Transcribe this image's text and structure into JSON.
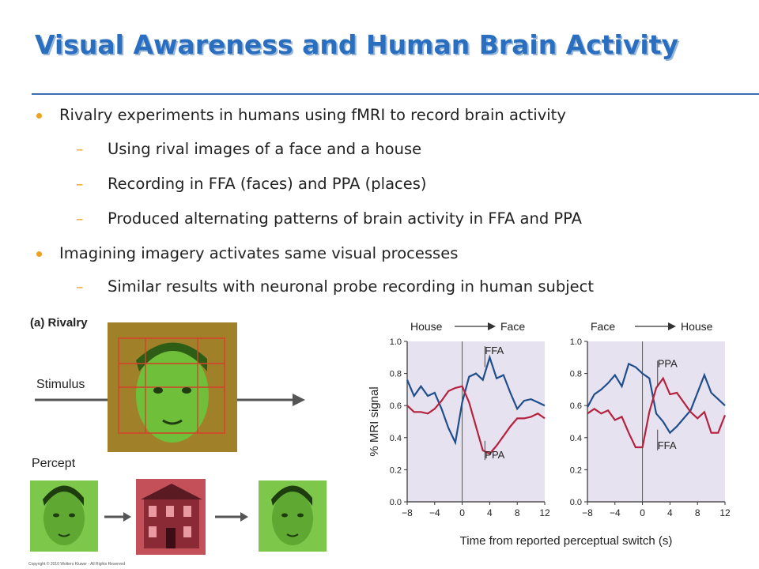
{
  "slide": {
    "title": "Visual Awareness and Human Brain Activity",
    "bullets": [
      {
        "level": 1,
        "text": "Rivalry experiments in humans using fMRI to record brain activity"
      },
      {
        "level": 2,
        "text": "Using rival images of a face and a house"
      },
      {
        "level": 2,
        "text": "Recording in FFA (faces) and PPA (places)"
      },
      {
        "level": 2,
        "text": "Produced alternating patterns of brain activity in FFA and PPA"
      },
      {
        "level": 1,
        "text": "Imagining imagery activates same visual processes"
      },
      {
        "level": 2,
        "text": "Similar results with neuronal probe recording in human subject"
      }
    ]
  },
  "figure": {
    "panel_label": "(a) Rivalry",
    "stimulus_label": "Stimulus",
    "percept_label": "Percept",
    "copyright": "Copyright © 2010 Wolters Kluwer - All Rights Reserved"
  },
  "chart_data": [
    {
      "type": "line",
      "title": "House → Face",
      "ylabel": "% MRI signal",
      "xlabel": "Time from reported perceptual switch (s)",
      "xlim": [
        -8,
        12
      ],
      "ylim": [
        0,
        1.0
      ],
      "x_ticks": [
        "-8",
        "-4",
        "0",
        "4",
        "8",
        "12"
      ],
      "y_ticks": [
        "0.0",
        "0.2",
        "0.4",
        "0.6",
        "0.8",
        "1.0"
      ],
      "title_left": "House",
      "title_right": "Face",
      "series": [
        {
          "name": "FFA",
          "color": "#1f4e8c",
          "x": [
            -8,
            -7,
            -6,
            -5,
            -4,
            -3,
            -2,
            -1,
            0,
            1,
            2,
            3,
            4,
            5,
            6,
            7,
            8,
            9,
            10,
            11,
            12
          ],
          "values": [
            0.76,
            0.66,
            0.72,
            0.66,
            0.68,
            0.58,
            0.46,
            0.37,
            0.62,
            0.78,
            0.8,
            0.76,
            0.9,
            0.77,
            0.79,
            0.68,
            0.58,
            0.63,
            0.64,
            0.62,
            0.6
          ]
        },
        {
          "name": "PPA",
          "color": "#b5223f",
          "x": [
            -8,
            -7,
            -6,
            -5,
            -4,
            -3,
            -2,
            -1,
            0,
            1,
            2,
            3,
            4,
            5,
            6,
            7,
            8,
            9,
            10,
            11,
            12
          ],
          "values": [
            0.6,
            0.56,
            0.56,
            0.55,
            0.58,
            0.63,
            0.69,
            0.71,
            0.72,
            0.62,
            0.47,
            0.32,
            0.3,
            0.35,
            0.41,
            0.47,
            0.52,
            0.52,
            0.53,
            0.55,
            0.52
          ]
        }
      ]
    },
    {
      "type": "line",
      "title": "Face → House",
      "xlim": [
        -8,
        12
      ],
      "ylim": [
        0,
        1.0
      ],
      "x_ticks": [
        "-8",
        "-4",
        "0",
        "4",
        "8",
        "12"
      ],
      "y_ticks": [
        "0.0",
        "0.2",
        "0.4",
        "0.6",
        "0.8",
        "1.0"
      ],
      "title_left": "Face",
      "title_right": "House",
      "series": [
        {
          "name": "PPA",
          "color": "#1f4e8c",
          "x": [
            -8,
            -7,
            -6,
            -5,
            -4,
            -3,
            -2,
            -1,
            0,
            1,
            2,
            3,
            4,
            5,
            6,
            7,
            8,
            9,
            10,
            11,
            12
          ],
          "values": [
            0.59,
            0.67,
            0.7,
            0.74,
            0.79,
            0.72,
            0.86,
            0.84,
            0.8,
            0.77,
            0.55,
            0.5,
            0.43,
            0.47,
            0.52,
            0.57,
            0.68,
            0.79,
            0.68,
            0.64,
            0.6
          ]
        },
        {
          "name": "FFA",
          "color": "#b5223f",
          "x": [
            -8,
            -7,
            -6,
            -5,
            -4,
            -3,
            -2,
            -1,
            0,
            1,
            2,
            3,
            4,
            5,
            6,
            7,
            8,
            9,
            10,
            11,
            12
          ],
          "values": [
            0.55,
            0.58,
            0.55,
            0.57,
            0.51,
            0.53,
            0.43,
            0.34,
            0.34,
            0.56,
            0.71,
            0.77,
            0.67,
            0.68,
            0.62,
            0.56,
            0.52,
            0.56,
            0.43,
            0.43,
            0.54
          ]
        }
      ]
    }
  ]
}
